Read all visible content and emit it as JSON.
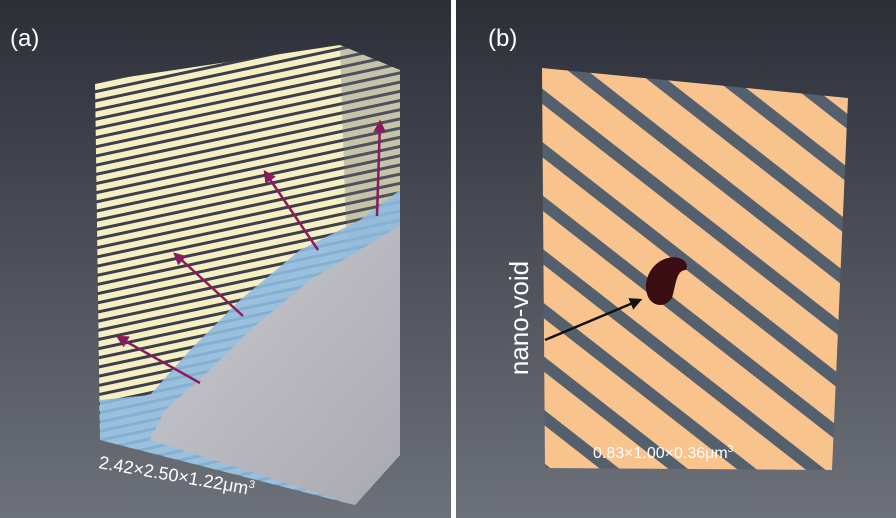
{
  "panels": [
    {
      "label": "(a)",
      "dimensions": {
        "text": "2.42×2.50×1.22μm",
        "superscript": "3"
      }
    },
    {
      "label": "(b)",
      "dimensions": {
        "text": "0.83×1.00×0.36μm",
        "superscript": "3"
      },
      "annotation": "nano-void"
    }
  ]
}
